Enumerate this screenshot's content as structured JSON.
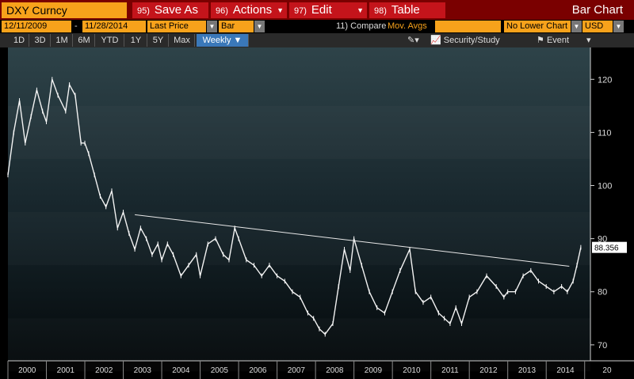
{
  "toolbar": {
    "ticker": "DXY Curncy",
    "buttons": [
      {
        "num": "95)",
        "label": "Save As"
      },
      {
        "num": "96)",
        "label": "Actions"
      },
      {
        "num": "97)",
        "label": "Edit"
      },
      {
        "num": "98)",
        "label": "Table"
      }
    ],
    "chart_type": "Bar Chart"
  },
  "settings": {
    "start_date": "12/11/2009",
    "date_separator": "-",
    "end_date": "11/28/2014",
    "price_field": "Last Price",
    "style": "Bar",
    "compare": "11) Compare",
    "mov_avgs": "Mov. Avgs",
    "lower_chart": "No Lower Chart",
    "currency": "USD"
  },
  "periods": [
    "1D",
    "3D",
    "1M",
    "6M",
    "YTD",
    "1Y",
    "5Y",
    "Max",
    "Weekly ▼"
  ],
  "tools": {
    "security_study": "Security/Study",
    "event": "Event"
  },
  "chart_data": {
    "type": "line",
    "series": [
      {
        "values_x": [
          2000.0,
          2000.15,
          2000.3,
          2000.45,
          2000.6,
          2000.75,
          2000.9,
          2001.0,
          2001.15,
          2001.3,
          2001.5,
          2001.6,
          2001.75,
          2001.9,
          2002.0,
          2002.1,
          2002.25,
          2002.4,
          2002.55,
          2002.7,
          2002.85,
          2003.0,
          2003.15,
          2003.3,
          2003.45,
          2003.6,
          2003.75,
          2003.9,
          2004.0,
          2004.15,
          2004.3,
          2004.5,
          2004.7,
          2004.9,
          2005.0,
          2005.2,
          2005.4,
          2005.6,
          2005.75,
          2005.9,
          2006.0,
          2006.2,
          2006.4,
          2006.6,
          2006.8,
          2007.0,
          2007.2,
          2007.4,
          2007.6,
          2007.8,
          2007.95,
          2008.1,
          2008.25,
          2008.45,
          2008.6,
          2008.75,
          2008.9,
          2009.0,
          2009.2,
          2009.4,
          2009.6,
          2009.8,
          2010.0,
          2010.2,
          2010.45,
          2010.6,
          2010.8,
          2011.0,
          2011.2,
          2011.35,
          2011.5,
          2011.65,
          2011.8,
          2012.0,
          2012.2,
          2012.45,
          2012.7,
          2012.9,
          2013.0,
          2013.2,
          2013.4,
          2013.6,
          2013.8,
          2014.0,
          2014.2,
          2014.4,
          2014.55,
          2014.7,
          2014.8,
          2014.9
        ],
        "values_y": [
          102,
          110,
          116,
          108,
          113,
          118,
          114,
          112,
          120,
          117,
          114,
          119,
          117,
          108,
          108,
          106,
          102,
          98,
          96,
          99,
          92,
          95,
          91,
          88,
          92,
          90,
          87,
          89,
          86,
          89,
          87,
          83,
          85,
          87,
          83,
          89,
          90,
          87,
          86,
          92,
          90,
          86,
          85,
          83,
          85,
          83,
          82,
          80,
          79,
          76,
          75,
          73,
          72,
          74,
          81,
          88,
          84,
          90,
          85,
          80,
          77,
          76,
          80,
          84,
          88,
          80,
          78,
          79,
          76,
          75,
          74,
          77,
          74,
          79,
          80,
          83,
          81,
          79,
          80,
          80,
          83,
          84,
          82,
          81,
          80,
          81,
          80,
          82,
          85,
          88.356
        ]
      }
    ],
    "trendline": {
      "x": [
        2003.3,
        2014.6
      ],
      "y": [
        94.5,
        84.8
      ]
    },
    "last_value_label": "88.356",
    "x_ticks": [
      "2000",
      "2001",
      "2002",
      "2003",
      "2004",
      "2005",
      "2006",
      "2007",
      "2008",
      "2009",
      "2010",
      "2011",
      "2012",
      "2013",
      "2014",
      "20"
    ],
    "y_ticks": [
      70,
      80,
      90,
      100,
      110,
      120
    ],
    "ylim": [
      67,
      126
    ],
    "xlim": [
      2000,
      2015.15
    ]
  }
}
